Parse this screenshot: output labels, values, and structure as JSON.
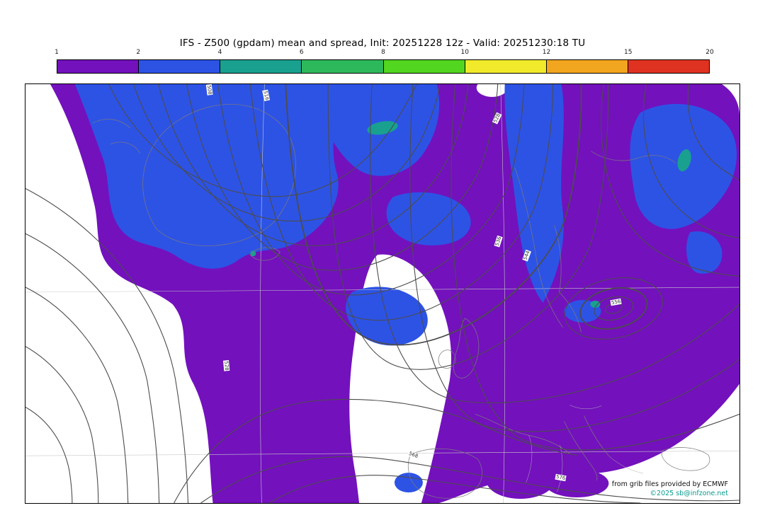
{
  "header": {
    "title": "IFS - Z500 (gpdam) mean and spread, Init: 20251228 12z - Valid: 20251230:18 TU"
  },
  "colorbar": {
    "tick_labels": [
      "1",
      "2",
      "4",
      "6",
      "8",
      "10",
      "12",
      "15",
      "20"
    ],
    "segment_ranges": [
      "1-2",
      "2-4",
      "4-6",
      "6-8",
      "8-10",
      "10-12",
      "12-15",
      "15-20"
    ],
    "segment_colors": [
      "#7311bd",
      "#2d53e5",
      "#19a08f",
      "#2eb85c",
      "#52d61f",
      "#f0ea2a",
      "#f2a51e",
      "#e03220"
    ]
  },
  "map": {
    "contour_labels": [
      "508",
      "516",
      "528",
      "536",
      "544",
      "556",
      "528",
      "568",
      "576"
    ],
    "credits": {
      "line1": "from grib files provided by ECMWF",
      "line2": "©2025 sb@infzone.net"
    }
  },
  "colors": {
    "spread_1_2": "#7311bd",
    "spread_2_4": "#2d53e5",
    "spread_4_6": "#19a08f",
    "contour_line": "#4c4c4c",
    "coastline": "#7a7a7a",
    "border_line": "#b0b0b0",
    "credit_teal": "#0a9b8e"
  },
  "chart_data": {
    "type": "heatmap",
    "title": "IFS - Z500 (gpdam) mean and spread",
    "model": "IFS (ECMWF)",
    "field": "Z500 ensemble mean (contour lines) and ensemble spread (colour shading)",
    "units": "gpdam",
    "init": "20251228 12z",
    "valid": "20251230:18 TU",
    "region": "North Atlantic / Europe",
    "colorbar": {
      "orientation": "horizontal",
      "position": "top",
      "bounds": [
        1,
        2,
        4,
        6,
        8,
        10,
        12,
        15,
        20
      ],
      "colors": [
        "#7311bd",
        "#2d53e5",
        "#19a08f",
        "#2eb85c",
        "#52d61f",
        "#f0ea2a",
        "#f2a51e",
        "#e03220"
      ]
    },
    "visible_contour_labels_gpdam": [
      508,
      516,
      528,
      536,
      544,
      556,
      568,
      576
    ],
    "shading_summary": [
      {
        "range": "<1",
        "color": "white",
        "regions": "subtropical central Atlantic (lower left), area around British Isles / Bay of Biscay, Iberia and Mediterranean, far lower-right"
      },
      {
        "range": "1-2",
        "color": "#7311bd",
        "regions": "dominant over most of the domain: Greenland margin, central Atlantic tongue reaching south, Scandinavia, eastern Europe and Russia"
      },
      {
        "range": "2-4",
        "color": "#2d53e5",
        "regions": "large mass over Greenland / Davis Strait and Arctic top-centre, meridional band over the Norwegian Sea, blob over western Russia, patches in mid-Atlantic"
      },
      {
        "range": "4-6",
        "color": "#19a08f",
        "regions": "small isolated spots (Arctic top-centre, western Russia, one near eastern Europe low)"
      }
    ],
    "grid": false,
    "legend_position": "top"
  }
}
